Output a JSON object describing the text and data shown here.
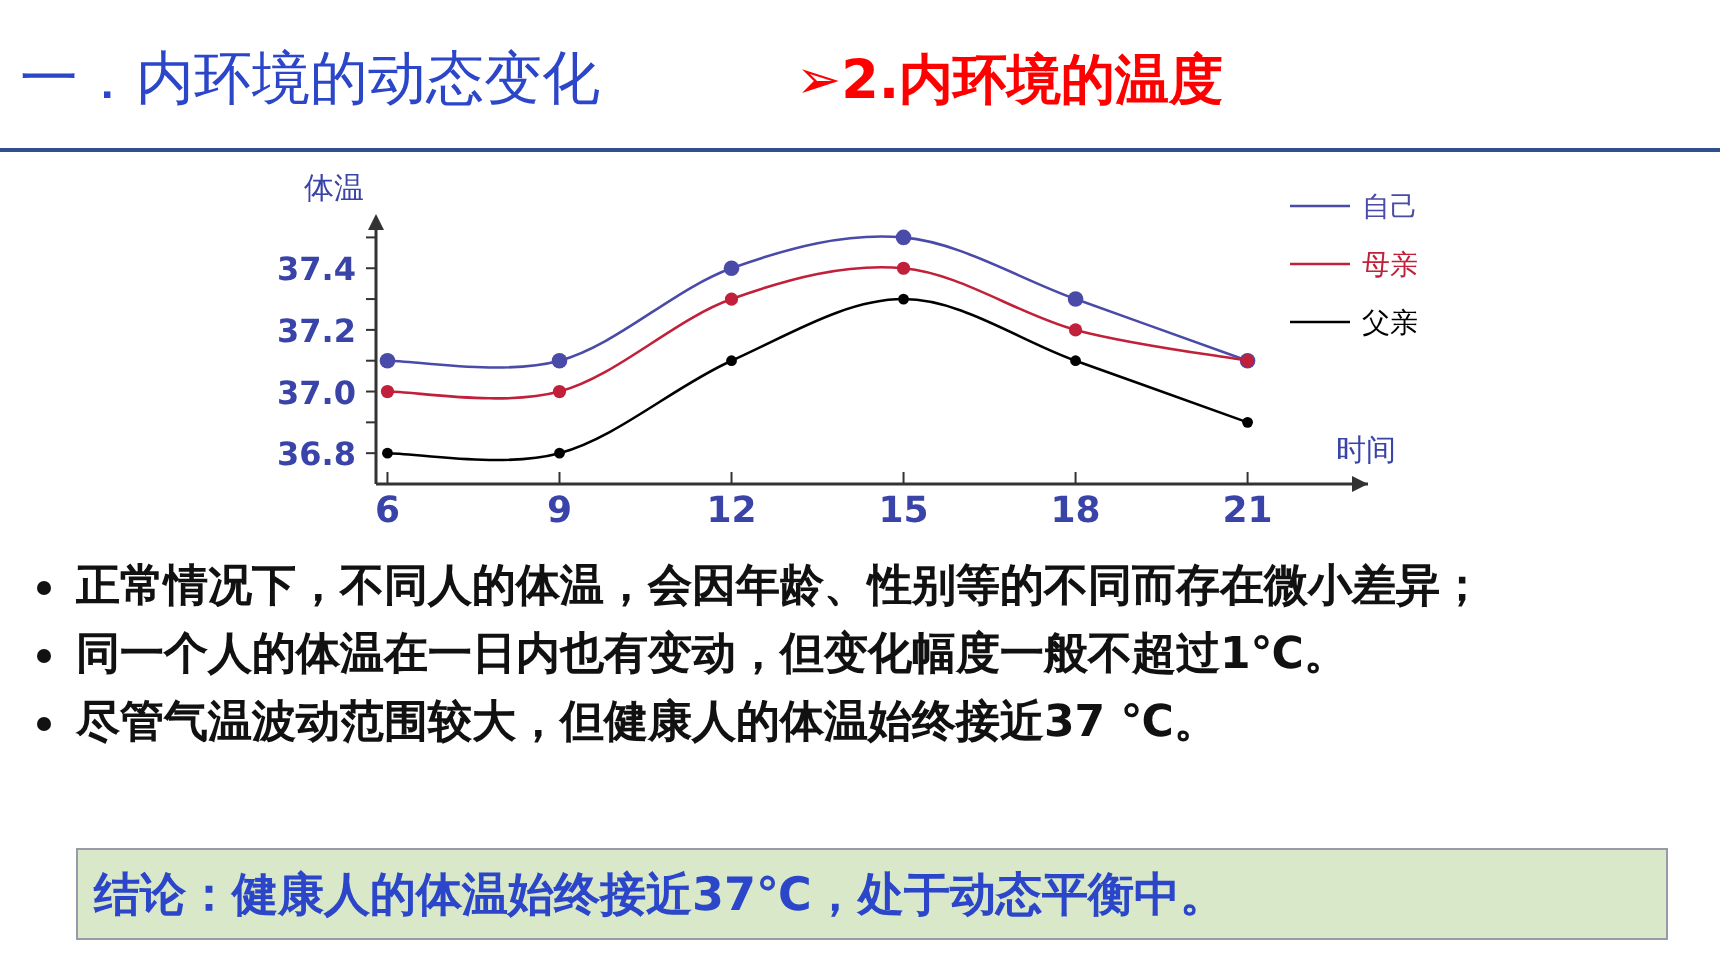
{
  "chart_data": {
    "type": "line",
    "title": "一．内环境的动态变化",
    "subtitle": "➢2.内环境的温度",
    "xlabel": "时间",
    "ylabel": "体温",
    "x": [
      6,
      9,
      12,
      15,
      18,
      21
    ],
    "series": [
      {
        "name": "自己",
        "color": "#4a4aa8",
        "values": [
          37.1,
          37.1,
          37.4,
          37.5,
          37.3,
          37.1
        ]
      },
      {
        "name": "母亲",
        "color": "#c0203a",
        "values": [
          37.0,
          37.0,
          37.3,
          37.4,
          37.2,
          37.1
        ]
      },
      {
        "name": "父亲",
        "color": "#000000",
        "values": [
          36.8,
          36.8,
          37.1,
          37.3,
          37.1,
          36.9
        ]
      }
    ],
    "xlim": [
      5.8,
      23.1
    ],
    "xticks": [
      6,
      9,
      12,
      15,
      18,
      21
    ],
    "ylim": [
      36.7,
      37.55
    ],
    "yticks": [
      {
        "value": 36.8,
        "label": "36.8"
      },
      {
        "value": 36.9,
        "label": null
      },
      {
        "value": 37.0,
        "label": "37.0"
      },
      {
        "value": 37.1,
        "label": null
      },
      {
        "value": 37.2,
        "label": "37.2"
      },
      {
        "value": 37.3,
        "label": null
      },
      {
        "value": 37.4,
        "label": "37.4"
      },
      {
        "value": 37.5,
        "label": null
      }
    ],
    "marker": "circle",
    "grid": false,
    "legend": "top right",
    "annotations": [
      "正常情况下，不同人的体温，会因年龄、性别等的不同而存在微小差异；",
      "同一个人的体温在一日内也有变动，但变化幅度一般不超过1℃。",
      "尽管气温波动范围较大，但健康人的体温始终接近37 ℃。",
      "结论：健康人的体温始终接近37℃，处于动态平衡中。"
    ]
  }
}
